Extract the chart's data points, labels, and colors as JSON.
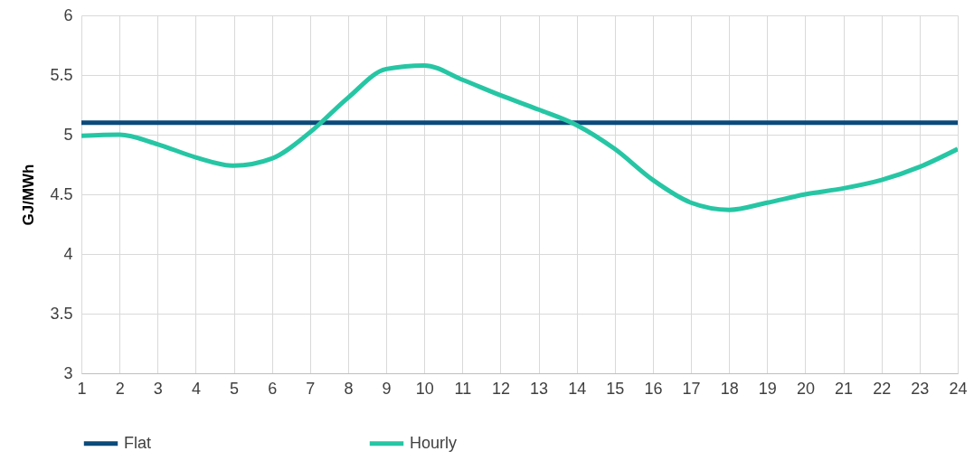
{
  "chart_data": {
    "type": "line",
    "ylabel": "GJ/MWh",
    "x": [
      1,
      2,
      3,
      4,
      5,
      6,
      7,
      8,
      9,
      10,
      11,
      12,
      13,
      14,
      15,
      16,
      17,
      18,
      19,
      20,
      21,
      22,
      23,
      24
    ],
    "series": [
      {
        "name": "Flat",
        "color": "#0b4a7a",
        "values": [
          5.1,
          5.1,
          5.1,
          5.1,
          5.1,
          5.1,
          5.1,
          5.1,
          5.1,
          5.1,
          5.1,
          5.1,
          5.1,
          5.1,
          5.1,
          5.1,
          5.1,
          5.1,
          5.1,
          5.1,
          5.1,
          5.1,
          5.1,
          5.1
        ]
      },
      {
        "name": "Hourly",
        "color": "#26c6a4",
        "values": [
          4.99,
          5.0,
          4.92,
          4.81,
          4.74,
          4.8,
          5.02,
          5.31,
          5.55,
          5.58,
          5.46,
          5.33,
          5.21,
          5.08,
          4.88,
          4.62,
          4.43,
          4.37,
          4.43,
          4.5,
          4.55,
          4.62,
          4.73,
          4.88
        ]
      }
    ],
    "xlim": [
      1,
      24
    ],
    "xticks": [
      1,
      2,
      3,
      4,
      5,
      6,
      7,
      8,
      9,
      10,
      11,
      12,
      13,
      14,
      15,
      16,
      17,
      18,
      19,
      20,
      21,
      22,
      23,
      24
    ],
    "ylim": [
      3,
      6
    ],
    "yticks": [
      3,
      3.5,
      4,
      4.5,
      5,
      5.5,
      6
    ],
    "grid": true,
    "legend": "bottom",
    "line_style": "solid"
  }
}
